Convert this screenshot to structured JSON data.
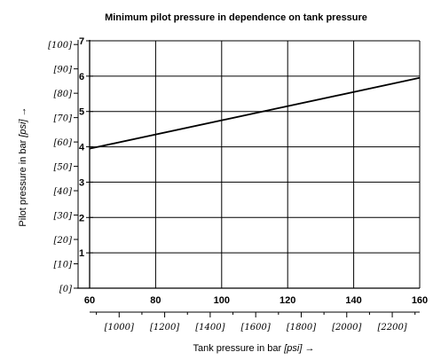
{
  "chart_data": {
    "type": "line",
    "title": "Minimum pilot pressure in dependence on tank pressure",
    "xlabel": "Tank pressure in bar",
    "xlabel_unit": "[psi]",
    "xlabel_arrow": "→",
    "ylabel": "Pilot pressure in bar",
    "ylabel_unit": "[psi]",
    "ylabel_arrow": "→",
    "xlim": [
      60,
      160
    ],
    "ylim": [
      0,
      7
    ],
    "grid": true,
    "x_ticks": [
      {
        "value": 60,
        "label": "60"
      },
      {
        "value": 80,
        "label": "80"
      },
      {
        "value": 100,
        "label": "100"
      },
      {
        "value": 120,
        "label": "120"
      },
      {
        "value": 140,
        "label": "140"
      },
      {
        "value": 160,
        "label": "160"
      }
    ],
    "y_ticks": [
      {
        "value": 1,
        "label": "1"
      },
      {
        "value": 2,
        "label": "2"
      },
      {
        "value": 3,
        "label": "3"
      },
      {
        "value": 4,
        "label": "4"
      },
      {
        "value": 5,
        "label": "5"
      },
      {
        "value": 6,
        "label": "6"
      },
      {
        "value": 7,
        "label": "7"
      }
    ],
    "psi_x_ticks": [
      {
        "value": 68.95,
        "label": "[1000]"
      },
      {
        "value": 82.74,
        "label": "[1200]"
      },
      {
        "value": 96.53,
        "label": "[1400]"
      },
      {
        "value": 110.32,
        "label": "[1600]"
      },
      {
        "value": 124.11,
        "label": "[1800]"
      },
      {
        "value": 137.9,
        "label": "[2000]"
      },
      {
        "value": 151.69,
        "label": "[2200]"
      }
    ],
    "psi_y_ticks": [
      {
        "value": 0,
        "label": "[0]"
      },
      {
        "value": 0.6895,
        "label": "[10]"
      },
      {
        "value": 1.379,
        "label": "[20]"
      },
      {
        "value": 2.0684,
        "label": "[30]"
      },
      {
        "value": 2.7579,
        "label": "[40]"
      },
      {
        "value": 3.4474,
        "label": "[50]"
      },
      {
        "value": 4.1369,
        "label": "[60]"
      },
      {
        "value": 4.8263,
        "label": "[70]"
      },
      {
        "value": 5.5158,
        "label": "[80]"
      },
      {
        "value": 6.2053,
        "label": "[90]"
      },
      {
        "value": 6.8948,
        "label": "[100]"
      }
    ],
    "series": [
      {
        "x": [
          60,
          160
        ],
        "y": [
          3.95,
          5.95
        ]
      }
    ]
  }
}
